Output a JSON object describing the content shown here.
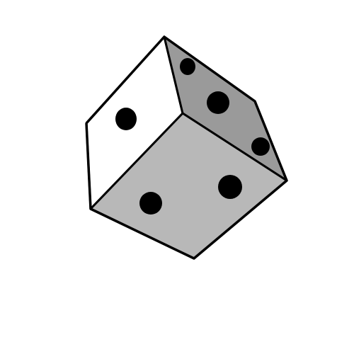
{
  "image": {
    "subject": "die",
    "background_color": "#ffffff",
    "outline_color": "#000000",
    "pip_color": "#000000"
  },
  "die": {
    "faces": [
      {
        "name": "left-face",
        "pips": 1,
        "shade": "#ffffff"
      },
      {
        "name": "right-face",
        "pips": 3,
        "shade": "#9a9a9a"
      },
      {
        "name": "front-face",
        "pips": 2,
        "shade": "#b8b8b8"
      }
    ]
  }
}
